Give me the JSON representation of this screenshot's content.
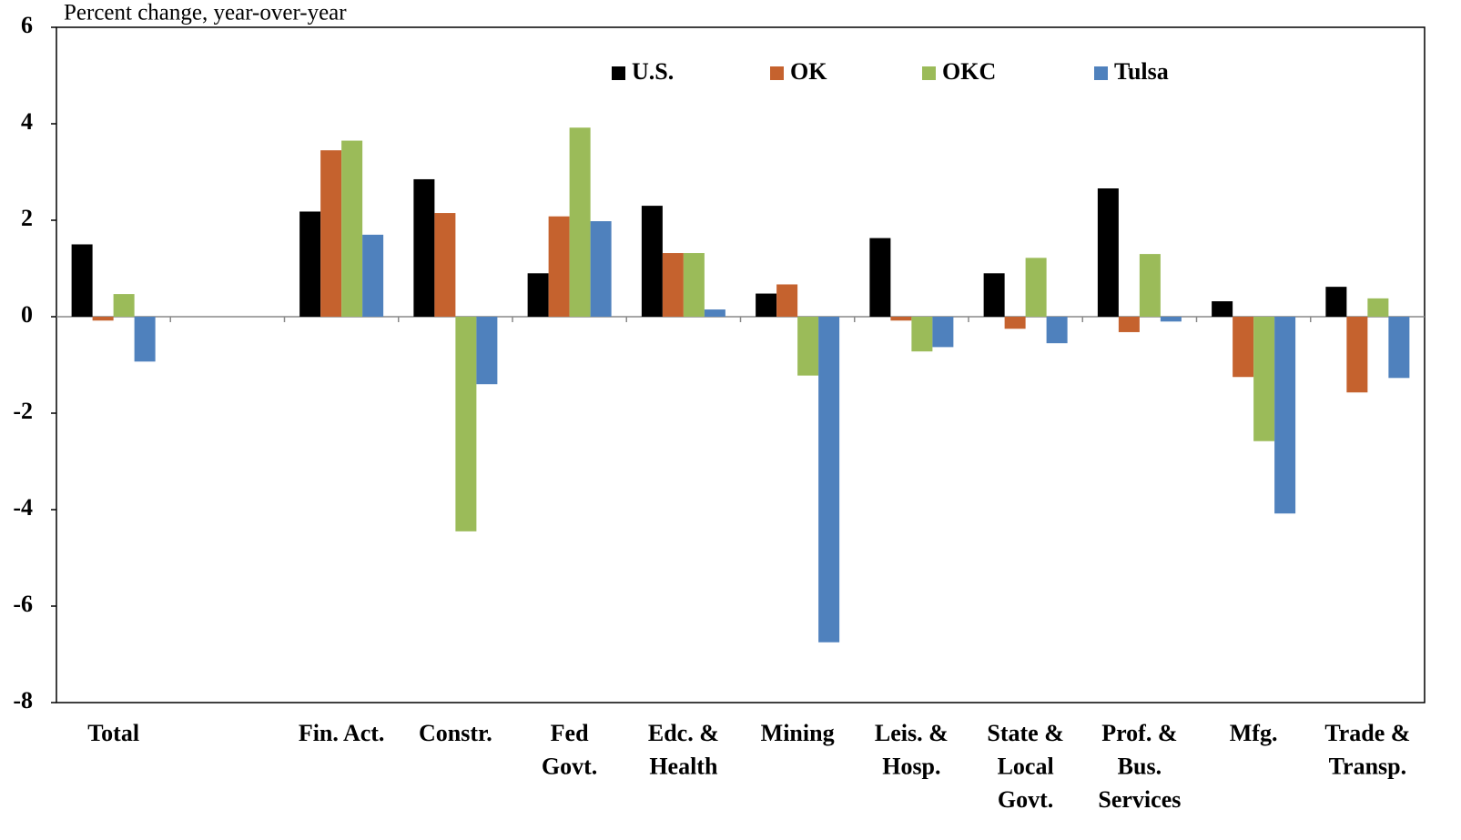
{
  "chart_data": {
    "type": "bar",
    "y_axis_label": "Percent change, year-over-year",
    "categories": [
      "Total",
      null,
      "Fin. Act.",
      "Constr.",
      "Fed\nGovt.",
      "Edc. &\nHealth",
      "Mining",
      "Leis. &\nHosp.",
      "State &\nLocal\nGovt.",
      "Prof. &\nBus.\nServices",
      "Mfg.",
      "Trade &\nTransp."
    ],
    "series": [
      {
        "name": "U.S.",
        "color": "#000000",
        "values": [
          1.5,
          null,
          2.18,
          2.85,
          0.9,
          2.3,
          0.48,
          1.63,
          0.9,
          2.66,
          0.32,
          0.62
        ]
      },
      {
        "name": "OK",
        "color": "#c5622e",
        "values": [
          -0.08,
          null,
          3.45,
          2.15,
          2.08,
          1.32,
          0.67,
          -0.08,
          -0.25,
          -0.32,
          -1.25,
          -1.57
        ]
      },
      {
        "name": "OKC",
        "color": "#9bbb59",
        "values": [
          0.47,
          null,
          3.65,
          -4.45,
          3.92,
          1.32,
          -1.22,
          -0.72,
          1.22,
          1.3,
          -2.58,
          0.38
        ]
      },
      {
        "name": "Tulsa",
        "color": "#4f81bd",
        "values": [
          -0.93,
          null,
          1.7,
          -1.4,
          1.98,
          0.15,
          -6.75,
          -0.63,
          -0.55,
          -0.1,
          -4.08,
          -1.27
        ]
      }
    ],
    "ylim": [
      -8,
      6
    ],
    "yticks": [
      -8,
      -6,
      -4,
      -2,
      0,
      2,
      4,
      6
    ]
  }
}
